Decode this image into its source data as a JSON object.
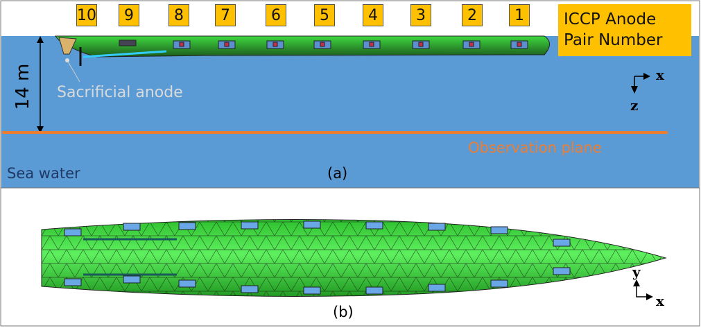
{
  "panel_a": {
    "anode_numbers": [
      "10",
      "9",
      "8",
      "7",
      "6",
      "5",
      "4",
      "3",
      "2",
      "1"
    ],
    "legend_label": "ICCP Anode Pair Number",
    "legend_line1": "ICCP Anode",
    "legend_line2": "Pair Number",
    "depth_label": "14 m",
    "sacrificial_label": "Sacrificial anode",
    "observation_label": "Observation plane",
    "medium_label": "Sea water",
    "panel_label": "(a)",
    "axis_x": "x",
    "axis_z": "z"
  },
  "panel_b": {
    "panel_label": "(b)",
    "axis_x": "x",
    "axis_y": "y"
  },
  "colors": {
    "sea": "#5b9bd5",
    "hull": "#3fd93f",
    "label_box": "#ffc000",
    "observation_plane": "#ed7d31",
    "sacrificial_text": "#d9d9d9",
    "sea_water_text": "#1f3864"
  }
}
